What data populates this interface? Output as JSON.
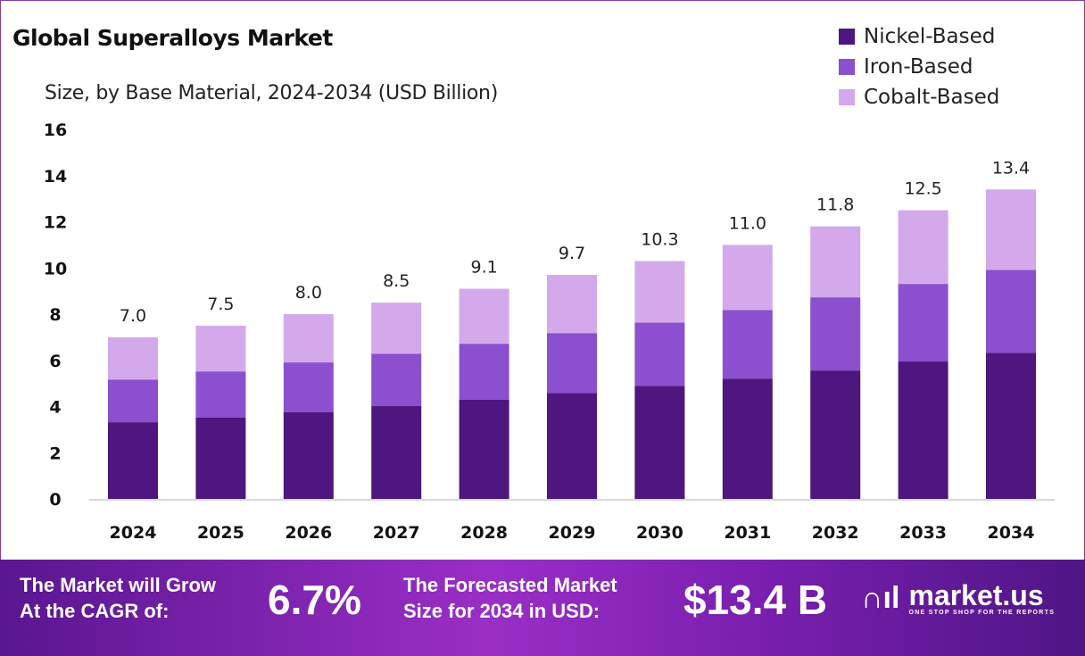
{
  "chart_data": {
    "type": "bar",
    "stacked": true,
    "title": "Global Superalloys Market",
    "subtitle": "Size, by Base Material, 2024-2034 (USD Billion)",
    "categories": [
      "2024",
      "2025",
      "2026",
      "2027",
      "2028",
      "2029",
      "2030",
      "2031",
      "2032",
      "2033",
      "2034"
    ],
    "series": [
      {
        "name": "Nickel-Based",
        "color": "#4e167e",
        "values": [
          3.32,
          3.53,
          3.75,
          4.02,
          4.29,
          4.59,
          4.9,
          5.21,
          5.56,
          5.95,
          6.33
        ]
      },
      {
        "name": "Iron-Based",
        "color": "#8b4fcf",
        "values": [
          1.85,
          1.99,
          2.16,
          2.27,
          2.43,
          2.59,
          2.74,
          2.97,
          3.17,
          3.36,
          3.59
        ]
      },
      {
        "name": "Cobalt-Based",
        "color": "#d3a9ec",
        "values": [
          1.83,
          1.98,
          2.09,
          2.21,
          2.38,
          2.52,
          2.66,
          2.82,
          3.07,
          3.19,
          3.48
        ]
      }
    ],
    "totals": [
      "7.0",
      "7.5",
      "8.0",
      "8.5",
      "9.1",
      "9.7",
      "10.3",
      "11.0",
      "11.8",
      "12.5",
      "13.4"
    ],
    "yticks": [
      "0",
      "2",
      "4",
      "6",
      "8",
      "10",
      "12",
      "14",
      "16"
    ],
    "ylim": [
      0,
      16
    ],
    "grid": false,
    "legend": "top-right"
  },
  "banner": {
    "cagr_label_1": "The Market will Grow",
    "cagr_label_2": "At the CAGR of:",
    "cagr_value": "6.7%",
    "forecast_label_1": "The Forecasted Market",
    "forecast_label_2": "Size for 2034 in USD:",
    "forecast_value": "$13.4 B",
    "logo_name": "market.us",
    "logo_tagline": "ONE STOP SHOP FOR THE REPORTS"
  }
}
